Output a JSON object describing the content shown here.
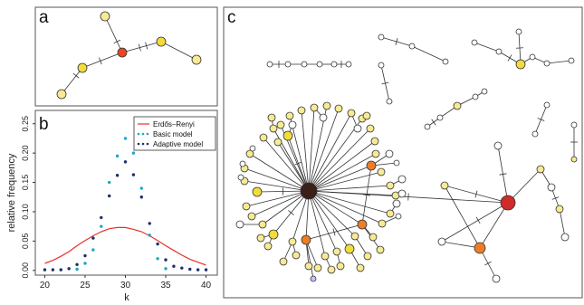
{
  "panels": {
    "a": {
      "letter": "a"
    },
    "b": {
      "letter": "b"
    },
    "c": {
      "letter": "c"
    }
  },
  "chart_data": {
    "type": "scatter",
    "xlabel": "k",
    "ylabel": "relative frequency",
    "xlim": [
      19.5,
      40.5
    ],
    "ylim": [
      -0.005,
      0.265
    ],
    "x_ticks": [
      "20",
      "25",
      "30",
      "35",
      "40"
    ],
    "y_ticks": [
      "0.00",
      "0.05",
      "0.10",
      "0.15",
      "0.20",
      "0.25"
    ],
    "legend_position": "top-right",
    "colors": {
      "erdos": "#e8312a",
      "basic": "#1aa7c8",
      "adaptive": "#1c2f6b"
    },
    "series": [
      {
        "name": "Erdős–Renyi",
        "style": "line",
        "x": [
          20,
          21,
          22,
          23,
          24,
          25,
          26,
          27,
          28,
          29,
          30,
          31,
          32,
          33,
          34,
          35,
          36,
          37,
          38,
          39,
          40
        ],
        "values": [
          0.012,
          0.017,
          0.024,
          0.032,
          0.042,
          0.051,
          0.059,
          0.066,
          0.071,
          0.073,
          0.073,
          0.07,
          0.066,
          0.059,
          0.051,
          0.042,
          0.034,
          0.026,
          0.019,
          0.014,
          0.009
        ]
      },
      {
        "name": "Basic model",
        "style": "points",
        "x": [
          24,
          25,
          26,
          27,
          28,
          29,
          30,
          31,
          32,
          33,
          34,
          35
        ],
        "values": [
          0.002,
          0.012,
          0.035,
          0.075,
          0.15,
          0.195,
          0.225,
          0.2,
          0.14,
          0.06,
          0.02,
          0.003
        ]
      },
      {
        "name": "Adaptive model",
        "style": "points",
        "x": [
          20,
          21,
          22,
          23,
          24,
          25,
          26,
          27,
          28,
          29,
          30,
          31,
          32,
          33,
          34,
          35,
          36,
          37,
          38,
          39,
          40
        ],
        "values": [
          0.001,
          0.001,
          0.001,
          0.003,
          0.01,
          0.025,
          0.055,
          0.09,
          0.127,
          0.162,
          0.185,
          0.163,
          0.125,
          0.08,
          0.045,
          0.018,
          0.007,
          0.004,
          0.002,
          0.001,
          0.001
        ]
      }
    ]
  }
}
